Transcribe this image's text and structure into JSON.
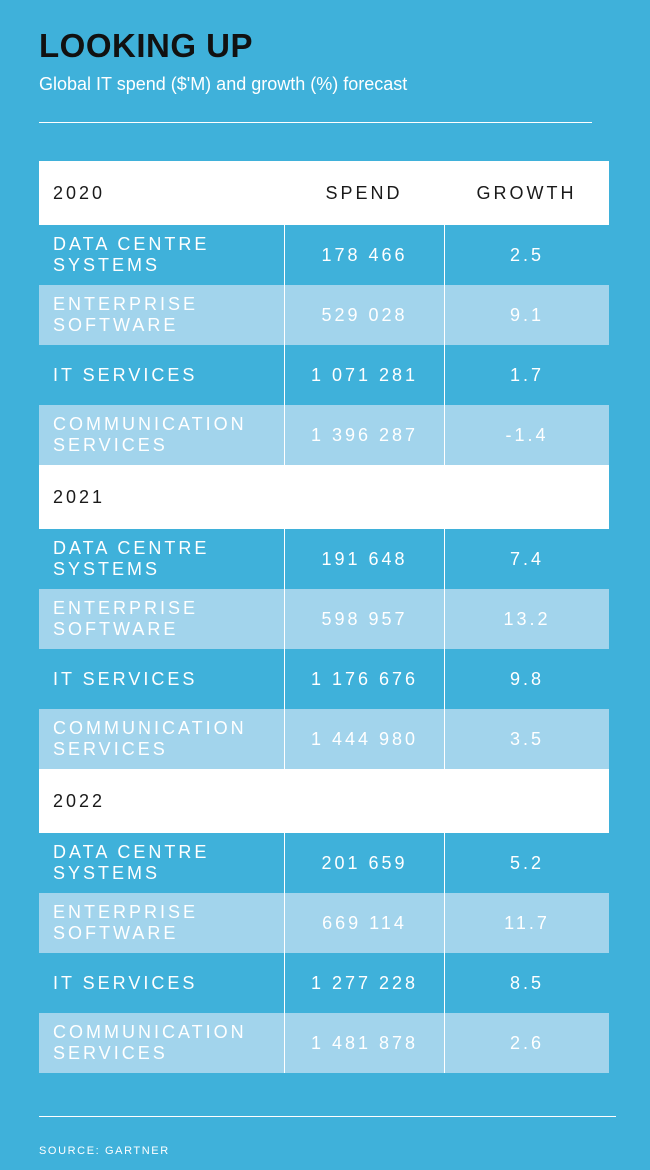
{
  "title": "LOOKING UP",
  "subtitle": "Global IT spend ($'M) and growth (%) forecast",
  "source": "SOURCE: GARTNER",
  "colors": {
    "background": "#3fb1da",
    "light_row": "#a2d4ec",
    "header_row": "#ffffff",
    "title": "#111111"
  },
  "chart_data": {
    "type": "table",
    "columns": [
      "",
      "SPEND",
      "GROWTH"
    ],
    "groups": [
      {
        "year": "2020",
        "rows": [
          {
            "category": "DATA CENTRE\nSYSTEMS",
            "spend": "178 466",
            "growth": "2.5"
          },
          {
            "category": "ENTERPRISE\nSOFTWARE",
            "spend": "529 028",
            "growth": "9.1"
          },
          {
            "category": "IT SERVICES",
            "spend": "1 071 281",
            "growth": "1.7"
          },
          {
            "category": "COMMUNICATION\nSERVICES",
            "spend": "1 396 287",
            "growth": "-1.4"
          }
        ]
      },
      {
        "year": "2021",
        "rows": [
          {
            "category": "DATA CENTRE\nSYSTEMS",
            "spend": "191 648",
            "growth": "7.4"
          },
          {
            "category": "ENTERPRISE\nSOFTWARE",
            "spend": "598 957",
            "growth": "13.2"
          },
          {
            "category": "IT SERVICES",
            "spend": "1 176 676",
            "growth": "9.8"
          },
          {
            "category": "COMMUNICATION\nSERVICES",
            "spend": "1 444 980",
            "growth": "3.5"
          }
        ]
      },
      {
        "year": "2022",
        "rows": [
          {
            "category": "DATA CENTRE\nSYSTEMS",
            "spend": "201 659",
            "growth": "5.2"
          },
          {
            "category": "ENTERPRISE\nSOFTWARE",
            "spend": "669 114",
            "growth": "11.7"
          },
          {
            "category": "IT SERVICES",
            "spend": "1 277 228",
            "growth": "8.5"
          },
          {
            "category": "COMMUNICATION\nSERVICES",
            "spend": "1 481 878",
            "growth": "2.6"
          }
        ]
      }
    ]
  }
}
